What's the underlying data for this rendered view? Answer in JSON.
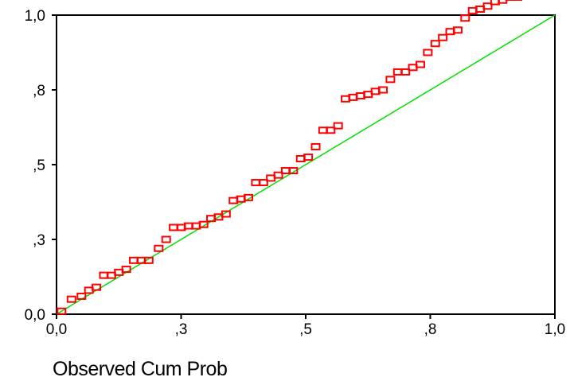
{
  "chart_data": {
    "type": "scatter",
    "title": "",
    "xlabel": "Observed Cum Prob",
    "ylabel": "",
    "xlim": [
      0,
      1
    ],
    "ylim": [
      0,
      1
    ],
    "x_ticks": [
      {
        "value": 0.0,
        "label": "0,0"
      },
      {
        "value": 0.25,
        "label": ",3"
      },
      {
        "value": 0.5,
        "label": ",5"
      },
      {
        "value": 0.75,
        "label": ",8"
      },
      {
        "value": 1.0,
        "label": "1,0"
      }
    ],
    "y_ticks": [
      {
        "value": 0.0,
        "label": "0,0"
      },
      {
        "value": 0.25,
        "label": ",3"
      },
      {
        "value": 0.5,
        "label": ",5"
      },
      {
        "value": 0.75,
        "label": ",8"
      },
      {
        "value": 1.0,
        "label": "1,0"
      }
    ],
    "grid": false,
    "reference_line": {
      "from": [
        0,
        0
      ],
      "to": [
        1,
        1
      ],
      "color": "#00e000"
    },
    "marker_color": "#ff0000",
    "points": [
      [
        0.01,
        0.01
      ],
      [
        0.03,
        0.05
      ],
      [
        0.05,
        0.06
      ],
      [
        0.065,
        0.08
      ],
      [
        0.08,
        0.09
      ],
      [
        0.095,
        0.13
      ],
      [
        0.11,
        0.13
      ],
      [
        0.125,
        0.14
      ],
      [
        0.14,
        0.15
      ],
      [
        0.155,
        0.18
      ],
      [
        0.17,
        0.18
      ],
      [
        0.185,
        0.18
      ],
      [
        0.205,
        0.22
      ],
      [
        0.22,
        0.25
      ],
      [
        0.235,
        0.29
      ],
      [
        0.25,
        0.29
      ],
      [
        0.265,
        0.295
      ],
      [
        0.28,
        0.295
      ],
      [
        0.295,
        0.3
      ],
      [
        0.31,
        0.32
      ],
      [
        0.325,
        0.325
      ],
      [
        0.34,
        0.335
      ],
      [
        0.355,
        0.38
      ],
      [
        0.37,
        0.385
      ],
      [
        0.385,
        0.39
      ],
      [
        0.4,
        0.44
      ],
      [
        0.415,
        0.44
      ],
      [
        0.43,
        0.455
      ],
      [
        0.445,
        0.465
      ],
      [
        0.46,
        0.48
      ],
      [
        0.475,
        0.48
      ],
      [
        0.49,
        0.52
      ],
      [
        0.505,
        0.525
      ],
      [
        0.52,
        0.56
      ],
      [
        0.535,
        0.615
      ],
      [
        0.55,
        0.615
      ],
      [
        0.565,
        0.63
      ],
      [
        0.58,
        0.72
      ],
      [
        0.595,
        0.725
      ],
      [
        0.61,
        0.73
      ],
      [
        0.625,
        0.735
      ],
      [
        0.64,
        0.745
      ],
      [
        0.655,
        0.75
      ],
      [
        0.67,
        0.785
      ],
      [
        0.685,
        0.81
      ],
      [
        0.7,
        0.81
      ],
      [
        0.715,
        0.825
      ],
      [
        0.73,
        0.835
      ],
      [
        0.745,
        0.875
      ],
      [
        0.76,
        0.905
      ],
      [
        0.775,
        0.925
      ],
      [
        0.79,
        0.945
      ],
      [
        0.805,
        0.95
      ],
      [
        0.82,
        0.99
      ],
      [
        0.835,
        1.015
      ],
      [
        0.85,
        1.02
      ],
      [
        0.865,
        1.03
      ],
      [
        0.88,
        1.045
      ],
      [
        0.895,
        1.05
      ],
      [
        0.91,
        1.06
      ],
      [
        0.925,
        1.06
      ],
      [
        0.95,
        1.09
      ],
      [
        0.965,
        1.09
      ]
    ]
  }
}
